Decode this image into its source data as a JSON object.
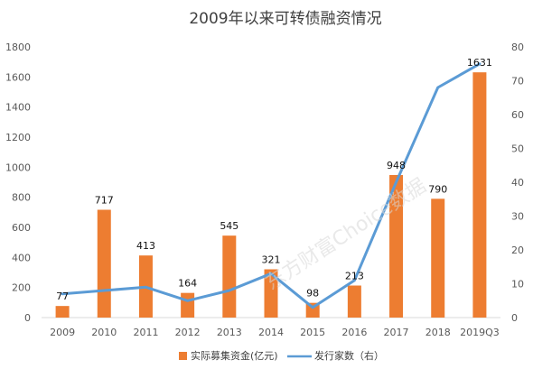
{
  "chart_data": {
    "type": "bar",
    "title": "2009年以来可转债融资情况",
    "categories": [
      "2009",
      "2010",
      "2011",
      "2012",
      "2013",
      "2014",
      "2015",
      "2016",
      "2017",
      "2018",
      "2019Q3"
    ],
    "series": [
      {
        "name": "实际募集资金(亿元)",
        "type": "bar",
        "axis": "left",
        "color": "#ED7D31",
        "values": [
          77,
          717,
          413,
          164,
          545,
          321,
          98,
          213,
          948,
          790,
          1631
        ]
      },
      {
        "name": "发行家数（右）",
        "type": "line",
        "axis": "right",
        "color": "#5B9BD5",
        "values": [
          7,
          8,
          9,
          5,
          8,
          13,
          3,
          11,
          40,
          68,
          75
        ]
      }
    ],
    "y_left": {
      "ylim": [
        0,
        1800
      ],
      "ticks": [
        "0",
        "200",
        "400",
        "600",
        "800",
        "1000",
        "1200",
        "1400",
        "1600",
        "1800"
      ]
    },
    "y_right": {
      "ylim": [
        0,
        80
      ],
      "ticks": [
        "0",
        "10",
        "20",
        "30",
        "40",
        "50",
        "60",
        "70",
        "80"
      ]
    },
    "data_labels": [
      "77",
      "717",
      "413",
      "164",
      "545",
      "321",
      "98",
      "213",
      "948",
      "790",
      "1631"
    ],
    "legend_position": "bottom",
    "grid": false
  },
  "watermark": "东方财富Choice数据"
}
